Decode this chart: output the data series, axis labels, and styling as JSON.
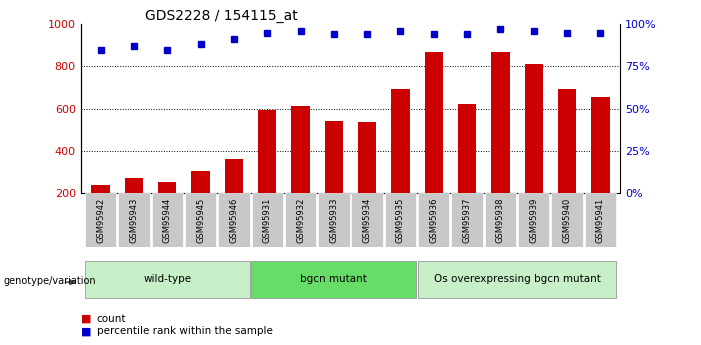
{
  "title": "GDS2228 / 154115_at",
  "samples": [
    "GSM95942",
    "GSM95943",
    "GSM95944",
    "GSM95945",
    "GSM95946",
    "GSM95931",
    "GSM95932",
    "GSM95933",
    "GSM95934",
    "GSM95935",
    "GSM95936",
    "GSM95937",
    "GSM95938",
    "GSM95939",
    "GSM95940",
    "GSM95941"
  ],
  "counts": [
    240,
    270,
    255,
    305,
    360,
    595,
    615,
    540,
    535,
    695,
    870,
    620,
    870,
    810,
    695,
    655
  ],
  "percentiles": [
    85,
    87,
    85,
    88,
    91,
    95,
    96,
    94,
    94,
    96,
    94,
    94,
    97,
    96,
    95,
    95
  ],
  "groups": [
    {
      "label": "wild-type",
      "start": 0,
      "end": 5,
      "color": "#c8f0c8"
    },
    {
      "label": "bgcn mutant",
      "start": 5,
      "end": 10,
      "color": "#66dd66"
    },
    {
      "label": "Os overexpressing bgcn mutant",
      "start": 10,
      "end": 16,
      "color": "#c8f0c8"
    }
  ],
  "ylim_left": [
    200,
    1000
  ],
  "ylim_right": [
    0,
    100
  ],
  "yticks_left": [
    200,
    400,
    600,
    800,
    1000
  ],
  "yticks_right": [
    0,
    25,
    50,
    75,
    100
  ],
  "bar_color": "#cc0000",
  "dot_color": "#0000cc",
  "tick_label_bg": "#c8c8c8",
  "genotype_label": "genotype/variation"
}
